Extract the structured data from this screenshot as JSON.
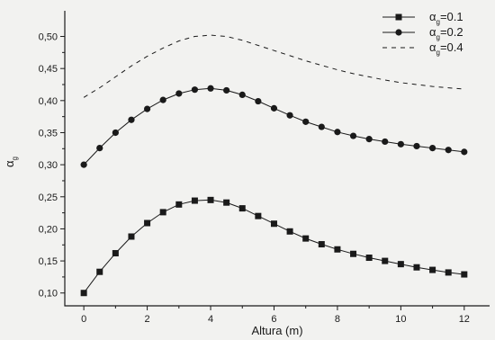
{
  "chart_data": {
    "type": "line",
    "xlabel": "Altura (m)",
    "ylabel": {
      "base": "α",
      "sub": "g"
    },
    "xlim": [
      -0.6,
      12.8
    ],
    "ylim": [
      0.08,
      0.54
    ],
    "xticks": [
      0,
      2,
      4,
      6,
      8,
      10,
      12
    ],
    "xtick_labels": [
      "0",
      "2",
      "4",
      "6",
      "8",
      "10",
      "12"
    ],
    "yticks": [
      0.1,
      0.15,
      0.2,
      0.25,
      0.3,
      0.35,
      0.4,
      0.45,
      0.5
    ],
    "ytick_labels": [
      "0,10",
      "0,15",
      "0,20",
      "0,25",
      "0,30",
      "0,35",
      "0,40",
      "0,45",
      "0,50"
    ],
    "grid": false,
    "legend_position": "top-right",
    "colors": {
      "line": "#1a1a1a",
      "background": "#f2f2f0"
    },
    "series": [
      {
        "legend": {
          "base": "α",
          "sub": "g",
          "value": "=0.1"
        },
        "marker": "square",
        "linestyle": "solid",
        "x": [
          0,
          0.5,
          1,
          1.5,
          2,
          2.5,
          3,
          3.5,
          4,
          4.5,
          5,
          5.5,
          6,
          6.5,
          7,
          7.5,
          8,
          8.5,
          9,
          9.5,
          10,
          10.5,
          11,
          11.5,
          12
        ],
        "y": [
          0.1,
          0.133,
          0.162,
          0.188,
          0.209,
          0.226,
          0.238,
          0.244,
          0.245,
          0.241,
          0.232,
          0.22,
          0.208,
          0.196,
          0.185,
          0.176,
          0.168,
          0.161,
          0.155,
          0.15,
          0.145,
          0.14,
          0.136,
          0.132,
          0.129
        ]
      },
      {
        "legend": {
          "base": "α",
          "sub": "g",
          "value": "=0.2"
        },
        "marker": "circle",
        "linestyle": "solid",
        "x": [
          0,
          0.5,
          1,
          1.5,
          2,
          2.5,
          3,
          3.5,
          4,
          4.5,
          5,
          5.5,
          6,
          6.5,
          7,
          7.5,
          8,
          8.5,
          9,
          9.5,
          10,
          10.5,
          11,
          11.5,
          12
        ],
        "y": [
          0.3,
          0.326,
          0.35,
          0.37,
          0.387,
          0.401,
          0.411,
          0.417,
          0.419,
          0.416,
          0.409,
          0.399,
          0.388,
          0.377,
          0.367,
          0.359,
          0.351,
          0.345,
          0.34,
          0.336,
          0.332,
          0.329,
          0.326,
          0.323,
          0.32
        ]
      },
      {
        "legend": {
          "base": "α",
          "sub": "g",
          "value": "=0.4"
        },
        "marker": "none",
        "linestyle": "dashed",
        "x": [
          0,
          0.5,
          1,
          1.5,
          2,
          2.5,
          3,
          3.5,
          4,
          4.5,
          5,
          5.5,
          6,
          6.5,
          7,
          7.5,
          8,
          8.5,
          9,
          9.5,
          10,
          10.5,
          11,
          11.5,
          12
        ],
        "y": [
          0.405,
          0.42,
          0.437,
          0.454,
          0.469,
          0.482,
          0.493,
          0.5,
          0.502,
          0.5,
          0.494,
          0.486,
          0.478,
          0.47,
          0.462,
          0.455,
          0.448,
          0.442,
          0.437,
          0.432,
          0.428,
          0.425,
          0.422,
          0.42,
          0.418
        ]
      }
    ]
  }
}
